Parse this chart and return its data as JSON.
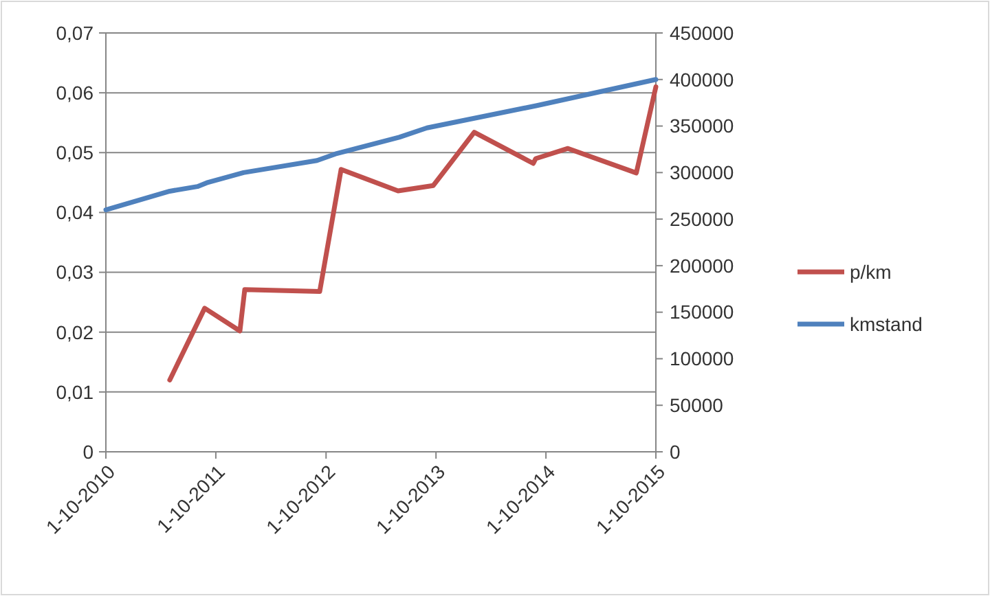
{
  "chart_data": {
    "type": "line",
    "xlim": [
      "2010-10-01",
      "2015-10-01"
    ],
    "xticks": [
      {
        "value": "2010-10-01",
        "label": "1-10-2010"
      },
      {
        "value": "2011-10-01",
        "label": "1-10-2011"
      },
      {
        "value": "2012-10-01",
        "label": "1-10-2012"
      },
      {
        "value": "2013-10-01",
        "label": "1-10-2013"
      },
      {
        "value": "2014-10-01",
        "label": "1-10-2014"
      },
      {
        "value": "2015-10-01",
        "label": "1-10-2015"
      }
    ],
    "ylim": [
      0,
      0.07
    ],
    "yticks": [
      {
        "value": 0,
        "label": "0"
      },
      {
        "value": 0.01,
        "label": "0,01"
      },
      {
        "value": 0.02,
        "label": "0,02"
      },
      {
        "value": 0.03,
        "label": "0,03"
      },
      {
        "value": 0.04,
        "label": "0,04"
      },
      {
        "value": 0.05,
        "label": "0,05"
      },
      {
        "value": 0.06,
        "label": "0,06"
      },
      {
        "value": 0.07,
        "label": "0,07"
      }
    ],
    "y2lim": [
      0,
      450000
    ],
    "y2ticks": [
      0,
      50000,
      100000,
      150000,
      200000,
      250000,
      300000,
      350000,
      400000,
      450000
    ],
    "grid": "y",
    "legend": "right",
    "marker": "none",
    "line_style": "solid",
    "series": [
      {
        "name": "p/km",
        "color": "#c0504d",
        "x": [
          "2011-05-01",
          "2011-08-25",
          "2011-12-20",
          "2012-01-05",
          "2012-09-10",
          "2012-11-20",
          "2013-05-28",
          "2013-09-22",
          "2014-02-05",
          "2014-08-20",
          "2014-08-28",
          "2014-12-13",
          "2015-07-28",
          "2015-10-01"
        ],
        "values": [
          0.012,
          0.024,
          0.0202,
          0.0271,
          0.0268,
          0.0472,
          0.0436,
          0.0445,
          0.0534,
          0.0482,
          0.049,
          0.0507,
          0.0466,
          0.061
        ]
      },
      {
        "name": "kmstand",
        "color": "#4f81bd",
        "axis": "y2",
        "x": [
          "2010-10-01",
          "2011-05-01",
          "2011-08-01",
          "2011-09-01",
          "2012-01-01",
          "2012-09-01",
          "2012-11-01",
          "2013-06-01",
          "2013-09-01",
          "2014-09-01",
          "2015-10-01"
        ],
        "values": [
          260000,
          280000,
          285000,
          289000,
          300000,
          313000,
          320000,
          338000,
          348000,
          372000,
          400000
        ]
      }
    ]
  }
}
